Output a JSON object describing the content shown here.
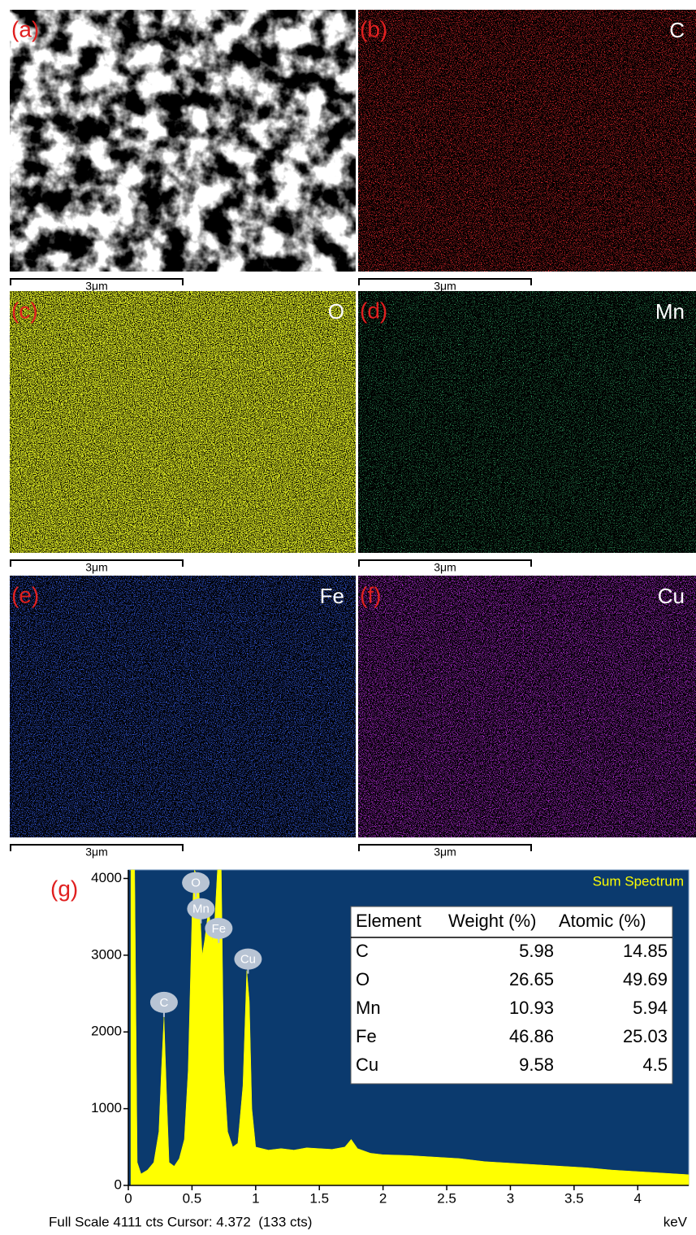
{
  "panels": [
    {
      "label": "(a)",
      "element": null,
      "scale": "3μm",
      "kind": "sem",
      "color": "#ffffff",
      "density": 0.5
    },
    {
      "label": "(b)",
      "element": "C",
      "scale": "3μm",
      "kind": "map",
      "color": "#d8262a",
      "density": 0.3
    },
    {
      "label": "(c)",
      "element": "O",
      "scale": "3μm",
      "kind": "map",
      "color": "#d4e021",
      "density": 0.62
    },
    {
      "label": "(d)",
      "element": "Mn",
      "scale": "3μm",
      "kind": "map",
      "color": "#2f9e62",
      "density": 0.22
    },
    {
      "label": "(e)",
      "element": "Fe",
      "scale": "3μm",
      "kind": "map",
      "color": "#3156d6",
      "density": 0.33
    },
    {
      "label": "(f)",
      "element": "Cu",
      "scale": "3μm",
      "kind": "map",
      "color": "#a62ac8",
      "density": 0.38
    }
  ],
  "chart_data": {
    "type": "area",
    "label": "(g)",
    "title": "Sum Spectrum",
    "color": "#ffff00",
    "background": "#0b3a6e",
    "x": [
      0.02,
      0.05,
      0.07,
      0.1,
      0.15,
      0.2,
      0.24,
      0.26,
      0.28,
      0.3,
      0.32,
      0.36,
      0.4,
      0.44,
      0.47,
      0.5,
      0.52,
      0.55,
      0.58,
      0.6,
      0.63,
      0.66,
      0.68,
      0.7,
      0.73,
      0.75,
      0.78,
      0.82,
      0.86,
      0.9,
      0.93,
      0.95,
      0.97,
      1.0,
      1.1,
      1.2,
      1.3,
      1.4,
      1.5,
      1.6,
      1.7,
      1.75,
      1.8,
      1.9,
      2.0,
      2.2,
      2.4,
      2.6,
      2.8,
      3.0,
      3.2,
      3.4,
      3.6,
      3.8,
      4.0,
      4.2,
      4.4
    ],
    "values": [
      4111,
      4111,
      300,
      150,
      200,
      300,
      700,
      1500,
      2200,
      1200,
      300,
      250,
      350,
      600,
      1500,
      3500,
      4111,
      4000,
      3000,
      3200,
      3600,
      3200,
      3500,
      4111,
      4111,
      1500,
      700,
      500,
      550,
      1300,
      2800,
      2400,
      1000,
      500,
      460,
      480,
      460,
      490,
      480,
      470,
      500,
      600,
      480,
      420,
      400,
      390,
      370,
      350,
      310,
      290,
      270,
      250,
      230,
      200,
      180,
      160,
      140
    ],
    "xlim": [
      0,
      4.4
    ],
    "ylim": [
      0,
      4111
    ],
    "xticks": [
      0,
      0.5,
      1,
      1.5,
      2,
      2.5,
      3,
      3.5,
      4
    ],
    "yticks": [
      0,
      1000,
      2000,
      3000,
      4000
    ],
    "peak_labels": [
      {
        "label": "C",
        "x": 0.28,
        "y": 2385
      },
      {
        "label": "O",
        "x": 0.53,
        "y": 3945
      },
      {
        "label": "Mn",
        "x": 0.57,
        "y": 3605
      },
      {
        "label": "Fe",
        "x": 0.71,
        "y": 3350
      },
      {
        "label": "Cu",
        "x": 0.94,
        "y": 2950
      }
    ],
    "table": {
      "columns": [
        "Element",
        "Weight (%)",
        "Atomic (%)"
      ],
      "rows": [
        [
          "C",
          5.98,
          14.85
        ],
        [
          "O",
          26.65,
          49.69
        ],
        [
          "Mn",
          10.93,
          5.94
        ],
        [
          "Fe",
          46.86,
          25.03
        ],
        [
          "Cu",
          9.58,
          4.5
        ]
      ]
    },
    "footer": "Full Scale 4111 cts Cursor: 4.372  (133 cts)",
    "x_unit": "keV"
  }
}
